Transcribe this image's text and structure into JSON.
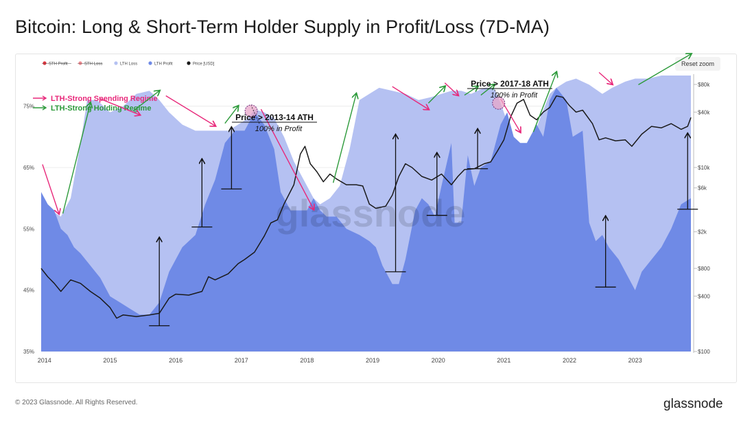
{
  "title": "Bitcoin: Long & Short-Term Holder Supply in Profit/Loss (7D-MA)",
  "reset_zoom": "Reset zoom",
  "footer_copyright": "© 2023 Glassnode. All Rights Reserved.",
  "brand": "glassnode",
  "watermark": "glassnode",
  "colors": {
    "lth_loss": "#b5c1f2",
    "lth_profit": "#6f8ae6",
    "price": "#1a1a1a",
    "sth_profit": "#e0323c",
    "sth_loss": "#f08a90",
    "spending_arrow": "#e8287a",
    "holding_arrow": "#2c9a3a"
  },
  "legend": [
    {
      "label": "STH Profit",
      "color": "#e0323c",
      "struck": true
    },
    {
      "label": "STH Loss",
      "color": "#f08a90",
      "struck": true
    },
    {
      "label": "LTH Loss",
      "color": "#b5c1f2",
      "struck": false
    },
    {
      "label": "LTH Profit",
      "color": "#6f8ae6",
      "struck": false
    },
    {
      "label": "Price [USD]",
      "color": "#1a1a1a",
      "struck": false
    }
  ],
  "regime_legend": [
    {
      "label": "LTH-Strong Spending Regime",
      "color": "#e8287a"
    },
    {
      "label": "LTH-Strong Holding Regime",
      "color": "#2c9a3a"
    }
  ],
  "annotations": [
    {
      "title": "Price > 2013-14 ATH",
      "subtitle": "100% in Profit"
    },
    {
      "title": "Price > 2017-18 ATH",
      "subtitle": "100% in Profit"
    }
  ],
  "chart_data": {
    "type": "area",
    "xlabel": "",
    "ylabel": "",
    "x_ticks": [
      "2014",
      "2015",
      "2016",
      "2017",
      "2018",
      "2019",
      "2020",
      "2021",
      "2022",
      "2023"
    ],
    "y_left_ticks": [
      "75%",
      "65%",
      "55%",
      "45%",
      "35%"
    ],
    "y_left_values": [
      75,
      65,
      55,
      45,
      35
    ],
    "ylim_left": [
      35,
      80
    ],
    "y_right_ticks": [
      "$80k",
      "$40k",
      "$10k",
      "$6k",
      "$2k",
      "$800",
      "$400",
      "$100"
    ],
    "y_right_values": [
      80000,
      40000,
      10000,
      6000,
      2000,
      800,
      400,
      100
    ],
    "ylim_right": [
      100,
      100000
    ],
    "y_right_scale": "log",
    "x_range": [
      2013.95,
      2023.85
    ],
    "grid": true,
    "series": [
      {
        "name": "LTH Loss",
        "kind": "area_total",
        "x": [
          2013.95,
          2014.1,
          2014.25,
          2014.4,
          2014.55,
          2014.65,
          2014.8,
          2014.9,
          2015.0,
          2015.2,
          2015.4,
          2015.6,
          2015.75,
          2015.9,
          2016.1,
          2016.3,
          2016.5,
          2016.7,
          2016.8,
          2016.95,
          2017.1,
          2017.2,
          2017.35,
          2017.5,
          2017.65,
          2017.8,
          2017.95,
          2018.1,
          2018.2,
          2018.35,
          2018.5,
          2018.65,
          2018.8,
          2018.95,
          2019.1,
          2019.3,
          2019.5,
          2019.7,
          2019.9,
          2020.05,
          2020.2,
          2020.35,
          2020.5,
          2020.7,
          2020.85,
          2020.95,
          2021.1,
          2021.2,
          2021.3,
          2021.45,
          2021.55,
          2021.7,
          2021.8,
          2021.95,
          2022.1,
          2022.3,
          2022.5,
          2022.65,
          2022.85,
          2023.0,
          2023.2,
          2023.4,
          2023.6,
          2023.85
        ],
        "values": [
          61,
          58,
          57,
          60,
          69,
          76,
          76,
          75,
          74,
          75,
          77,
          77.5,
          76,
          74,
          72,
          71,
          71,
          71,
          71,
          72,
          73,
          74.5,
          74,
          73,
          70,
          66,
          63,
          60,
          59,
          60,
          62,
          68,
          76,
          77,
          78,
          77.5,
          77,
          76,
          76.5,
          77,
          77.5,
          77.5,
          77,
          78,
          78,
          75.5,
          71,
          69,
          68,
          70,
          73,
          77,
          78,
          79,
          79.5,
          78.5,
          77,
          78,
          79,
          79.5,
          79.5,
          80,
          80,
          80
        ]
      },
      {
        "name": "LTH Profit",
        "kind": "area",
        "x": [
          2013.95,
          2014.05,
          2014.15,
          2014.25,
          2014.35,
          2014.45,
          2014.55,
          2014.7,
          2014.85,
          2015.0,
          2015.15,
          2015.3,
          2015.45,
          2015.6,
          2015.75,
          2015.9,
          2016.1,
          2016.3,
          2016.45,
          2016.6,
          2016.75,
          2016.9,
          2017.05,
          2017.2,
          2017.35,
          2017.5,
          2017.6,
          2017.75,
          2017.85,
          2018.0,
          2018.1,
          2018.2,
          2018.3,
          2018.45,
          2018.6,
          2018.8,
          2018.95,
          2019.05,
          2019.15,
          2019.3,
          2019.4,
          2019.5,
          2019.65,
          2019.75,
          2019.85,
          2019.95,
          2020.05,
          2020.2,
          2020.25,
          2020.35,
          2020.45,
          2020.55,
          2020.65,
          2020.8,
          2020.95,
          2021.05,
          2021.15,
          2021.25,
          2021.35,
          2021.5,
          2021.6,
          2021.7,
          2021.8,
          2021.95,
          2022.05,
          2022.2,
          2022.3,
          2022.4,
          2022.5,
          2022.6,
          2022.75,
          2022.9,
          2023.0,
          2023.1,
          2023.25,
          2023.4,
          2023.55,
          2023.7,
          2023.85
        ],
        "values": [
          61,
          59,
          58,
          55,
          54,
          52,
          51,
          49,
          47,
          44,
          43,
          42,
          41,
          41,
          43,
          48,
          52,
          54,
          59,
          63,
          69,
          71,
          71,
          74,
          72,
          68,
          61,
          58,
          58,
          58,
          60,
          58,
          57,
          57,
          55,
          54,
          53,
          52,
          49,
          46,
          46,
          50,
          58,
          60,
          59,
          57,
          62,
          69,
          56,
          56,
          67,
          62,
          65,
          66,
          72,
          74,
          70,
          69,
          69,
          72,
          70,
          76,
          78,
          76,
          70,
          71,
          56,
          53,
          54,
          52,
          50,
          47,
          45,
          48,
          50,
          52,
          55,
          59,
          60
        ]
      },
      {
        "name": "Price [USD]",
        "kind": "line",
        "axis": "right",
        "x": [
          2013.95,
          2014.05,
          2014.15,
          2014.25,
          2014.4,
          2014.55,
          2014.7,
          2014.85,
          2015.0,
          2015.1,
          2015.2,
          2015.4,
          2015.6,
          2015.75,
          2015.9,
          2016.0,
          2016.2,
          2016.4,
          2016.5,
          2016.6,
          2016.8,
          2016.95,
          2017.05,
          2017.2,
          2017.35,
          2017.45,
          2017.55,
          2017.65,
          2017.8,
          2017.9,
          2017.97,
          2018.05,
          2018.15,
          2018.25,
          2018.35,
          2018.45,
          2018.6,
          2018.75,
          2018.85,
          2018.95,
          2019.05,
          2019.2,
          2019.3,
          2019.4,
          2019.5,
          2019.6,
          2019.75,
          2019.9,
          2020.05,
          2020.2,
          2020.3,
          2020.4,
          2020.55,
          2020.7,
          2020.8,
          2020.9,
          2021.0,
          2021.1,
          2021.2,
          2021.3,
          2021.4,
          2021.5,
          2021.6,
          2021.7,
          2021.8,
          2021.9,
          2022.0,
          2022.1,
          2022.2,
          2022.35,
          2022.45,
          2022.55,
          2022.7,
          2022.85,
          2022.95,
          2023.1,
          2023.25,
          2023.4,
          2023.55,
          2023.7,
          2023.8,
          2023.85
        ],
        "values": [
          800,
          650,
          550,
          450,
          600,
          550,
          450,
          380,
          300,
          230,
          250,
          240,
          250,
          260,
          380,
          420,
          410,
          450,
          650,
          600,
          700,
          900,
          1000,
          1200,
          1800,
          2500,
          2700,
          4000,
          6500,
          14000,
          17000,
          11000,
          9000,
          7000,
          8500,
          7500,
          6500,
          6500,
          6300,
          4000,
          3600,
          3800,
          5000,
          8000,
          11000,
          10000,
          8000,
          7300,
          8500,
          6500,
          8000,
          9500,
          9700,
          11000,
          11500,
          15000,
          20000,
          35000,
          50000,
          55000,
          37000,
          33000,
          40000,
          45000,
          60000,
          58000,
          47000,
          40000,
          42000,
          30000,
          20000,
          21000,
          19500,
          20000,
          17000,
          23000,
          28000,
          27000,
          30000,
          26000,
          28000,
          35000
        ]
      }
    ]
  }
}
